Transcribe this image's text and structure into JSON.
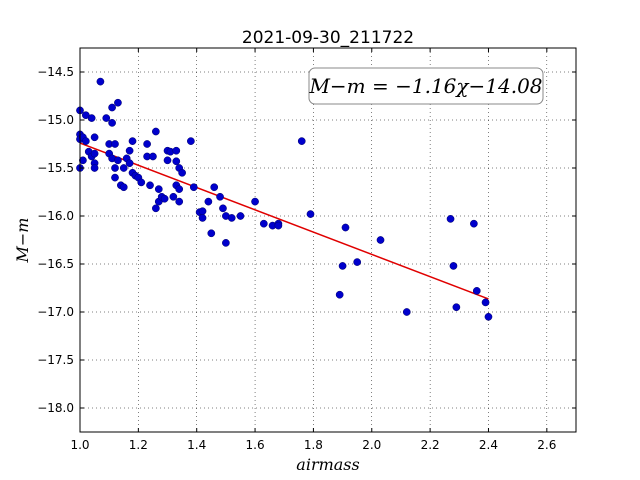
{
  "chart_data": {
    "type": "scatter",
    "title": "2021-09-30_211722",
    "xlabel": "airmass",
    "ylabel": "M−m",
    "xlim": [
      1.0,
      2.7
    ],
    "ylim": [
      -18.25,
      -14.25
    ],
    "y_inverted": false,
    "grid": true,
    "x_ticks": [
      1.0,
      1.2,
      1.4,
      1.6,
      1.8,
      2.0,
      2.2,
      2.4,
      2.6
    ],
    "x_tick_labels": [
      "1.0",
      "1.2",
      "1.4",
      "1.6",
      "1.8",
      "2.0",
      "2.2",
      "2.4",
      "2.6"
    ],
    "y_ticks": [
      -14.5,
      -15.0,
      -15.5,
      -16.0,
      -16.5,
      -17.0,
      -17.5,
      -18.0
    ],
    "y_tick_labels": [
      "−14.5",
      "−15.0",
      "−15.5",
      "−16.0",
      "−16.5",
      "−17.0",
      "−17.5",
      "−18.0"
    ],
    "annotation": "M−m = −1.16χ−14.08",
    "annotation_position": "top-right",
    "fit_line": {
      "slope": -1.16,
      "intercept": -14.08,
      "x_range": [
        1.0,
        2.4
      ],
      "color": "#e00000"
    },
    "marker_color": "#0000cc",
    "series": [
      {
        "points": [
          [
            1.0,
            -14.9
          ],
          [
            1.0,
            -15.15
          ],
          [
            1.0,
            -15.5
          ],
          [
            1.0,
            -15.2
          ],
          [
            1.01,
            -15.42
          ],
          [
            1.01,
            -15.18
          ],
          [
            1.02,
            -14.95
          ],
          [
            1.02,
            -15.22
          ],
          [
            1.03,
            -15.33
          ],
          [
            1.04,
            -14.98
          ],
          [
            1.04,
            -15.38
          ],
          [
            1.05,
            -15.18
          ],
          [
            1.05,
            -15.35
          ],
          [
            1.05,
            -15.45
          ],
          [
            1.05,
            -15.5
          ],
          [
            1.07,
            -14.6
          ],
          [
            1.09,
            -14.98
          ],
          [
            1.1,
            -15.25
          ],
          [
            1.1,
            -15.35
          ],
          [
            1.11,
            -14.87
          ],
          [
            1.11,
            -15.03
          ],
          [
            1.11,
            -15.4
          ],
          [
            1.12,
            -15.5
          ],
          [
            1.12,
            -15.25
          ],
          [
            1.12,
            -15.6
          ],
          [
            1.13,
            -14.82
          ],
          [
            1.13,
            -15.42
          ],
          [
            1.14,
            -15.68
          ],
          [
            1.15,
            -15.5
          ],
          [
            1.15,
            -15.7
          ],
          [
            1.16,
            -15.4
          ],
          [
            1.17,
            -15.45
          ],
          [
            1.17,
            -15.32
          ],
          [
            1.18,
            -15.22
          ],
          [
            1.18,
            -15.55
          ],
          [
            1.19,
            -15.58
          ],
          [
            1.2,
            -15.6
          ],
          [
            1.21,
            -15.65
          ],
          [
            1.23,
            -15.25
          ],
          [
            1.23,
            -15.38
          ],
          [
            1.24,
            -15.68
          ],
          [
            1.25,
            -15.38
          ],
          [
            1.26,
            -15.12
          ],
          [
            1.26,
            -15.92
          ],
          [
            1.27,
            -15.72
          ],
          [
            1.27,
            -15.85
          ],
          [
            1.28,
            -15.8
          ],
          [
            1.29,
            -15.82
          ],
          [
            1.3,
            -15.32
          ],
          [
            1.3,
            -15.42
          ],
          [
            1.31,
            -15.33
          ],
          [
            1.32,
            -15.8
          ],
          [
            1.33,
            -15.68
          ],
          [
            1.33,
            -15.32
          ],
          [
            1.33,
            -15.43
          ],
          [
            1.34,
            -15.5
          ],
          [
            1.34,
            -15.72
          ],
          [
            1.35,
            -15.55
          ],
          [
            1.34,
            -15.85
          ],
          [
            1.38,
            -15.22
          ],
          [
            1.39,
            -15.7
          ],
          [
            1.41,
            -15.96
          ],
          [
            1.42,
            -15.95
          ],
          [
            1.42,
            -16.02
          ],
          [
            1.44,
            -15.85
          ],
          [
            1.45,
            -16.18
          ],
          [
            1.46,
            -15.7
          ],
          [
            1.48,
            -15.8
          ],
          [
            1.49,
            -15.92
          ],
          [
            1.5,
            -16.0
          ],
          [
            1.5,
            -16.28
          ],
          [
            1.52,
            -16.02
          ],
          [
            1.55,
            -16.0
          ],
          [
            1.6,
            -15.85
          ],
          [
            1.63,
            -16.08
          ],
          [
            1.66,
            -16.1
          ],
          [
            1.68,
            -16.08
          ],
          [
            1.68,
            -16.1
          ],
          [
            1.76,
            -15.22
          ],
          [
            1.79,
            -15.98
          ],
          [
            1.89,
            -16.82
          ],
          [
            1.9,
            -16.52
          ],
          [
            1.91,
            -16.12
          ],
          [
            1.95,
            -16.48
          ],
          [
            2.03,
            -16.25
          ],
          [
            2.12,
            -17.0
          ],
          [
            2.27,
            -16.03
          ],
          [
            2.28,
            -16.52
          ],
          [
            2.29,
            -16.95
          ],
          [
            2.35,
            -16.08
          ],
          [
            2.36,
            -16.78
          ],
          [
            2.39,
            -16.9
          ],
          [
            2.4,
            -17.05
          ]
        ]
      }
    ]
  }
}
